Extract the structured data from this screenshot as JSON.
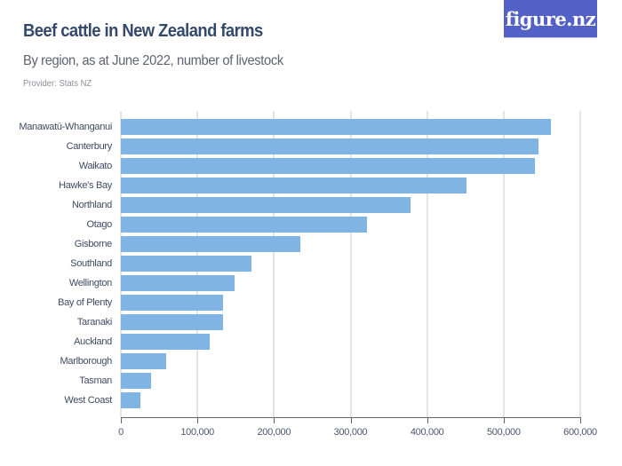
{
  "header": {
    "title": "Beef cattle in New Zealand farms",
    "subtitle": "By region, as at June 2022, number of livestock",
    "provider": "Provider: Stats NZ",
    "logo_text": "figure.nz"
  },
  "colors": {
    "bar": "#7fb4e3",
    "title": "#34486b",
    "logo_bg": "#5360c6",
    "gridline": "#e4e4e4"
  },
  "chart_data": {
    "type": "bar",
    "orientation": "horizontal",
    "title": "Beef cattle in New Zealand farms",
    "subtitle": "By region, as at June 2022, number of livestock",
    "xlabel": "",
    "ylabel": "",
    "xlim": [
      0,
      600000
    ],
    "grid": true,
    "legend": "none",
    "categories": [
      "Manawatū-Whanganui",
      "Canterbury",
      "Waikato",
      "Hawke's Bay",
      "Northland",
      "Otago",
      "Gisborne",
      "Southland",
      "Wellington",
      "Bay of Plenty",
      "Taranaki",
      "Auckland",
      "Marlborough",
      "Tasman",
      "West Coast"
    ],
    "values": [
      562000,
      546000,
      541000,
      452000,
      378000,
      322000,
      234000,
      171000,
      149000,
      133000,
      133000,
      116000,
      59000,
      39000,
      26000
    ],
    "tick_values": [
      0,
      100000,
      200000,
      300000,
      400000,
      500000,
      600000
    ],
    "tick_labels": [
      "0",
      "100,000",
      "200,000",
      "300,000",
      "400,000",
      "500,000",
      "600,000"
    ]
  }
}
